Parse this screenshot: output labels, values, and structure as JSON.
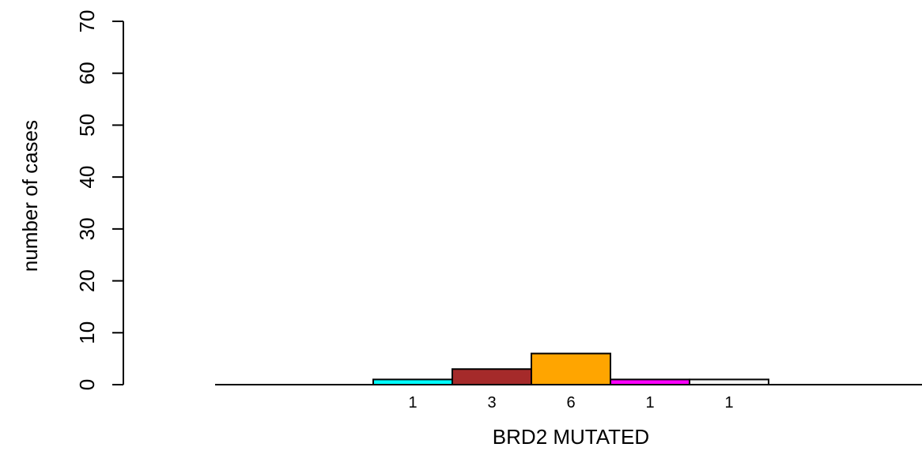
{
  "chart_data": {
    "type": "bar",
    "title": "",
    "xlabel": "BRD2 MUTATED",
    "ylabel": "number of cases",
    "ylim": [
      0,
      70
    ],
    "yticks": [
      "0",
      "10",
      "20",
      "30",
      "40",
      "50",
      "60",
      "70"
    ],
    "values": [
      1,
      3,
      6,
      1,
      1
    ],
    "bar_labels": [
      "1",
      "3",
      "6",
      "1",
      "1"
    ],
    "colors": [
      "#00FFFF",
      "#A52A2A",
      "#FFA500",
      "#FF00FF",
      "#F5F5F5"
    ],
    "grid": false,
    "legend": "none"
  }
}
